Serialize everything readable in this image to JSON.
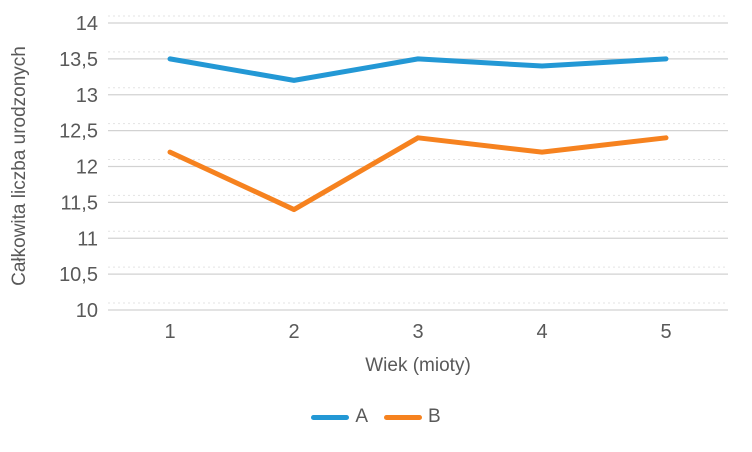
{
  "chart_data": {
    "type": "line",
    "title": "",
    "xlabel": "Wiek (mioty)",
    "ylabel": "Całkowita liczba urodzonych",
    "x_labels": [
      "1",
      "2",
      "3",
      "4",
      "5"
    ],
    "series": [
      {
        "name": "A",
        "color": "#2398d5",
        "values": [
          13.5,
          13.2,
          13.5,
          13.4,
          13.5
        ]
      },
      {
        "name": "B",
        "color": "#f6821f",
        "values": [
          12.2,
          11.4,
          12.4,
          12.2,
          12.4
        ]
      }
    ],
    "ylim": [
      10,
      14
    ],
    "ytick_step": 0.5,
    "yticks": [
      {
        "v": 10,
        "label": "10"
      },
      {
        "v": 10.5,
        "label": "10,5"
      },
      {
        "v": 11,
        "label": "11"
      },
      {
        "v": 11.5,
        "label": "11,5"
      },
      {
        "v": 12,
        "label": "12"
      },
      {
        "v": 12.5,
        "label": "12,5"
      },
      {
        "v": 13,
        "label": "13"
      },
      {
        "v": 13.5,
        "label": "13,5"
      },
      {
        "v": 14,
        "label": "14"
      }
    ],
    "grid": true,
    "legend_position": "bottom"
  },
  "style": {
    "grid_color": "#d2d2d2",
    "minor_grid_color": "#e3e3e3",
    "text_color": "#595959",
    "background": "#ffffff"
  }
}
